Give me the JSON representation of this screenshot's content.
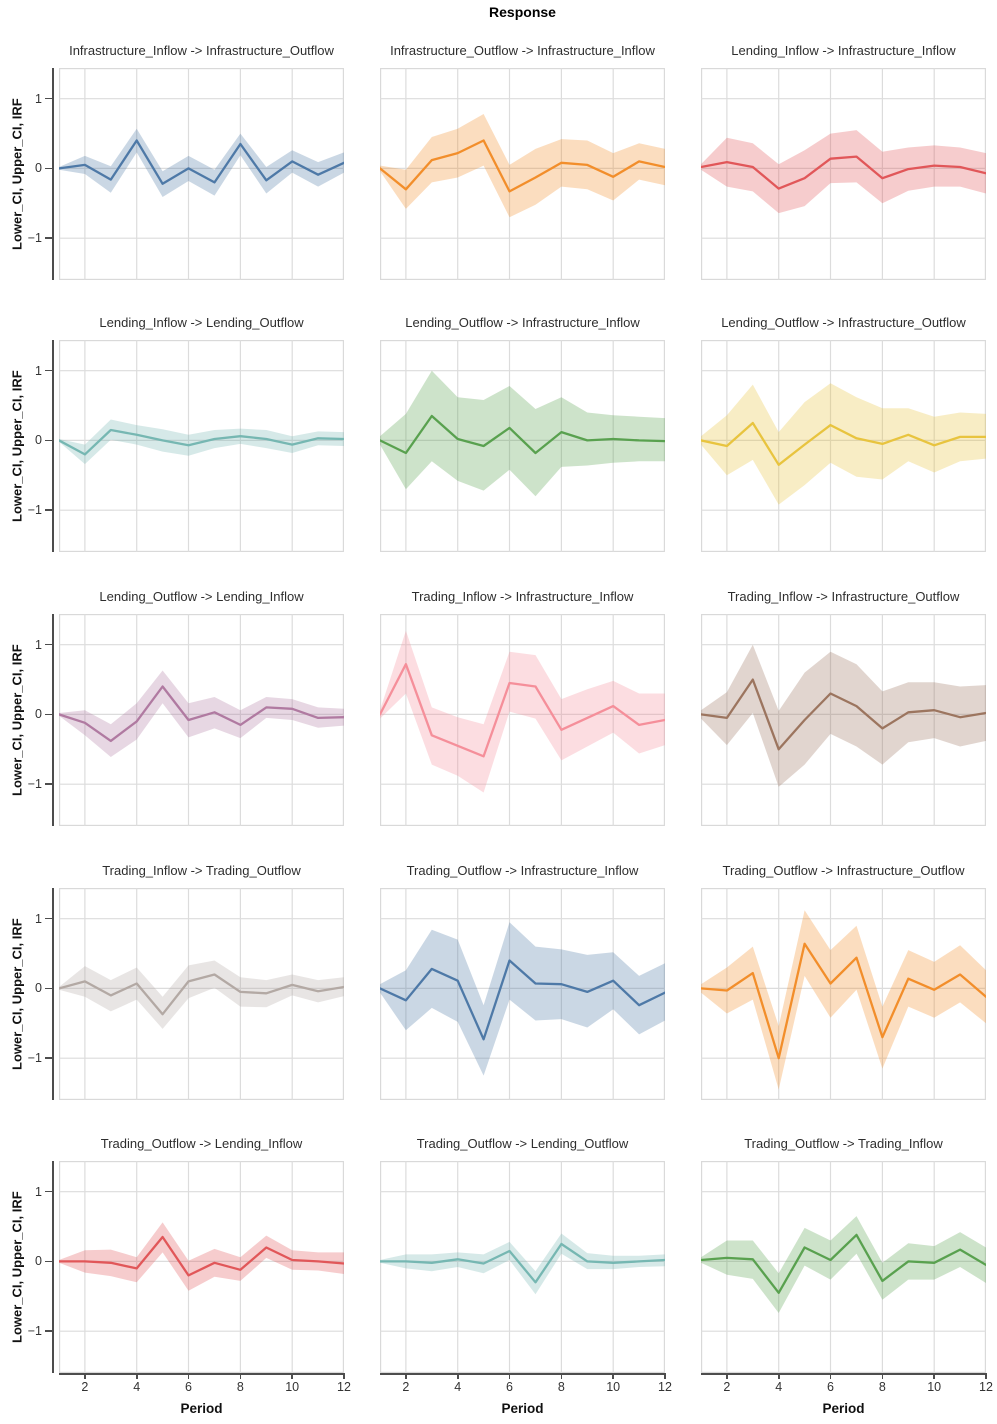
{
  "figure": {
    "suptitle": "Response",
    "xlabel": "Period",
    "ylabel": "Lower_CI, Upper_CI, IRF",
    "background_color": "#ffffff",
    "panel_border_color": "#d9d9d9",
    "grid_color": "#dcdcdc",
    "axis_line_color": "#4d4d4d",
    "yticks": [
      {
        "label": "1",
        "value": 1
      },
      {
        "label": "0",
        "value": 0
      },
      {
        "label": "−1",
        "value": -1
      }
    ],
    "xticks": [
      {
        "label": "2",
        "value": 2
      },
      {
        "label": "4",
        "value": 4
      },
      {
        "label": "6",
        "value": 6
      },
      {
        "label": "8",
        "value": 8
      },
      {
        "label": "10",
        "value": 10
      },
      {
        "label": "12",
        "value": 12
      }
    ]
  },
  "chart_data": [
    {
      "type": "line",
      "title": "Infrastructure_Inflow -> Infrastructure_Outflow",
      "color": "#4e79a7",
      "x": [
        1,
        2,
        3,
        4,
        5,
        6,
        7,
        8,
        9,
        10,
        11,
        12
      ],
      "irf": [
        0.0,
        0.05,
        -0.16,
        0.4,
        -0.22,
        0.0,
        -0.2,
        0.35,
        -0.17,
        0.1,
        -0.09,
        0.08
      ],
      "upper_ci": [
        0.02,
        0.18,
        0.03,
        0.57,
        -0.04,
        0.18,
        -0.02,
        0.5,
        0.02,
        0.26,
        0.09,
        0.23
      ],
      "lower_ci": [
        -0.02,
        -0.08,
        -0.35,
        0.23,
        -0.41,
        -0.18,
        -0.39,
        0.19,
        -0.36,
        -0.06,
        -0.26,
        -0.06
      ],
      "xlim": [
        1,
        12
      ],
      "ylim": [
        -1.6,
        1.44
      ]
    },
    {
      "type": "line",
      "title": "Infrastructure_Outflow -> Infrastructure_Inflow",
      "color": "#f28e2b",
      "x": [
        1,
        2,
        3,
        4,
        5,
        6,
        7,
        8,
        9,
        10,
        11,
        12
      ],
      "irf": [
        0.0,
        -0.3,
        0.12,
        0.22,
        0.4,
        -0.33,
        -0.13,
        0.08,
        0.05,
        -0.12,
        0.1,
        0.02
      ],
      "upper_ci": [
        0.04,
        -0.02,
        0.45,
        0.57,
        0.78,
        0.05,
        0.28,
        0.42,
        0.4,
        0.22,
        0.36,
        0.28
      ],
      "lower_ci": [
        -0.04,
        -0.58,
        -0.2,
        -0.13,
        0.04,
        -0.7,
        -0.52,
        -0.26,
        -0.3,
        -0.46,
        -0.16,
        -0.24
      ],
      "xlim": [
        1,
        12
      ],
      "ylim": [
        -1.6,
        1.44
      ]
    },
    {
      "type": "line",
      "title": "Lending_Inflow -> Infrastructure_Inflow",
      "color": "#e15759",
      "x": [
        1,
        2,
        3,
        4,
        5,
        6,
        7,
        8,
        9,
        10,
        11,
        12
      ],
      "irf": [
        0.02,
        0.09,
        0.02,
        -0.29,
        -0.14,
        0.14,
        0.17,
        -0.14,
        -0.01,
        0.04,
        0.02,
        -0.07
      ],
      "upper_ci": [
        0.06,
        0.44,
        0.36,
        0.06,
        0.26,
        0.5,
        0.55,
        0.24,
        0.3,
        0.33,
        0.3,
        0.22
      ],
      "lower_ci": [
        -0.02,
        -0.26,
        -0.33,
        -0.64,
        -0.54,
        -0.21,
        -0.2,
        -0.5,
        -0.32,
        -0.26,
        -0.26,
        -0.36
      ],
      "xlim": [
        1,
        12
      ],
      "ylim": [
        -1.6,
        1.44
      ]
    },
    {
      "type": "line",
      "title": "Lending_Inflow -> Lending_Outflow",
      "color": "#76b7b2",
      "x": [
        1,
        2,
        3,
        4,
        5,
        6,
        7,
        8,
        9,
        10,
        11,
        12
      ],
      "irf": [
        0.0,
        -0.2,
        0.15,
        0.08,
        0.0,
        -0.07,
        0.02,
        0.06,
        0.02,
        -0.06,
        0.03,
        0.02
      ],
      "upper_ci": [
        0.02,
        -0.06,
        0.3,
        0.22,
        0.16,
        0.08,
        0.15,
        0.17,
        0.15,
        0.06,
        0.13,
        0.12
      ],
      "lower_ci": [
        -0.02,
        -0.34,
        0.01,
        -0.06,
        -0.16,
        -0.22,
        -0.11,
        -0.05,
        -0.11,
        -0.18,
        -0.07,
        -0.08
      ],
      "xlim": [
        1,
        12
      ],
      "ylim": [
        -1.6,
        1.44
      ]
    },
    {
      "type": "line",
      "title": "Lending_Outflow -> Infrastructure_Inflow",
      "color": "#59a14f",
      "x": [
        1,
        2,
        3,
        4,
        5,
        6,
        7,
        8,
        9,
        10,
        11,
        12
      ],
      "irf": [
        0.0,
        -0.18,
        0.35,
        0.02,
        -0.08,
        0.18,
        -0.18,
        0.12,
        0.0,
        0.02,
        0.0,
        -0.01
      ],
      "upper_ci": [
        0.06,
        0.38,
        1.0,
        0.62,
        0.58,
        0.78,
        0.45,
        0.62,
        0.4,
        0.36,
        0.34,
        0.32
      ],
      "lower_ci": [
        -0.06,
        -0.7,
        -0.3,
        -0.58,
        -0.72,
        -0.42,
        -0.8,
        -0.38,
        -0.36,
        -0.32,
        -0.3,
        -0.3
      ],
      "xlim": [
        1,
        12
      ],
      "ylim": [
        -1.6,
        1.44
      ]
    },
    {
      "type": "line",
      "title": "Lending_Outflow -> Infrastructure_Outflow",
      "color": "#e8c43f",
      "x": [
        1,
        2,
        3,
        4,
        5,
        6,
        7,
        8,
        9,
        10,
        11,
        12
      ],
      "irf": [
        0.0,
        -0.08,
        0.25,
        -0.35,
        -0.06,
        0.22,
        0.03,
        -0.05,
        0.08,
        -0.07,
        0.05,
        0.05
      ],
      "upper_ci": [
        0.06,
        0.36,
        0.8,
        0.12,
        0.55,
        0.82,
        0.62,
        0.46,
        0.46,
        0.34,
        0.4,
        0.38
      ],
      "lower_ci": [
        -0.06,
        -0.5,
        -0.28,
        -0.92,
        -0.64,
        -0.32,
        -0.52,
        -0.56,
        -0.3,
        -0.46,
        -0.3,
        -0.26
      ],
      "xlim": [
        1,
        12
      ],
      "ylim": [
        -1.6,
        1.44
      ]
    },
    {
      "type": "line",
      "title": "Lending_Outflow -> Lending_Inflow",
      "color": "#b07aa1",
      "x": [
        1,
        2,
        3,
        4,
        5,
        6,
        7,
        8,
        9,
        10,
        11,
        12
      ],
      "irf": [
        0.0,
        -0.12,
        -0.38,
        -0.1,
        0.4,
        -0.08,
        0.03,
        -0.15,
        0.1,
        0.08,
        -0.05,
        -0.04
      ],
      "upper_ci": [
        0.02,
        0.06,
        -0.14,
        0.16,
        0.63,
        0.16,
        0.25,
        0.06,
        0.25,
        0.22,
        0.1,
        0.08
      ],
      "lower_ci": [
        -0.02,
        -0.3,
        -0.61,
        -0.36,
        0.16,
        -0.33,
        -0.2,
        -0.34,
        -0.05,
        -0.08,
        -0.19,
        -0.16
      ],
      "xlim": [
        1,
        12
      ],
      "ylim": [
        -1.6,
        1.44
      ]
    },
    {
      "type": "line",
      "title": "Trading_Inflow -> Infrastructure_Inflow",
      "color": "#f58f9a",
      "x": [
        1,
        2,
        3,
        4,
        5,
        6,
        7,
        8,
        9,
        10,
        11,
        12
      ],
      "irf": [
        0.0,
        0.72,
        -0.3,
        -0.45,
        -0.6,
        0.45,
        0.4,
        -0.22,
        -0.05,
        0.12,
        -0.15,
        -0.08
      ],
      "upper_ci": [
        0.06,
        1.2,
        0.1,
        -0.04,
        -0.14,
        0.9,
        0.85,
        0.22,
        0.36,
        0.48,
        0.3,
        0.3
      ],
      "lower_ci": [
        -0.06,
        0.3,
        -0.72,
        -0.88,
        -1.12,
        0.04,
        -0.06,
        -0.66,
        -0.46,
        -0.26,
        -0.56,
        -0.44
      ],
      "xlim": [
        1,
        12
      ],
      "ylim": [
        -1.6,
        1.44
      ]
    },
    {
      "type": "line",
      "title": "Trading_Inflow -> Infrastructure_Outflow",
      "color": "#9c755f",
      "x": [
        1,
        2,
        3,
        4,
        5,
        6,
        7,
        8,
        9,
        10,
        11,
        12
      ],
      "irf": [
        0.0,
        -0.05,
        0.5,
        -0.5,
        -0.08,
        0.3,
        0.12,
        -0.2,
        0.03,
        0.06,
        -0.04,
        0.02
      ],
      "upper_ci": [
        0.06,
        0.32,
        1.0,
        0.05,
        0.6,
        0.9,
        0.72,
        0.33,
        0.46,
        0.46,
        0.4,
        0.42
      ],
      "lower_ci": [
        -0.06,
        -0.44,
        0.02,
        -1.04,
        -0.72,
        -0.28,
        -0.46,
        -0.72,
        -0.4,
        -0.34,
        -0.46,
        -0.38
      ],
      "xlim": [
        1,
        12
      ],
      "ylim": [
        -1.6,
        1.44
      ]
    },
    {
      "type": "line",
      "title": "Trading_Inflow -> Trading_Outflow",
      "color": "#b3a9a4",
      "x": [
        1,
        2,
        3,
        4,
        5,
        6,
        7,
        8,
        9,
        10,
        11,
        12
      ],
      "irf": [
        0.0,
        0.1,
        -0.1,
        0.07,
        -0.37,
        0.1,
        0.2,
        -0.05,
        -0.07,
        0.05,
        -0.04,
        0.02
      ],
      "upper_ci": [
        0.02,
        0.32,
        0.12,
        0.3,
        -0.12,
        0.33,
        0.4,
        0.16,
        0.12,
        0.2,
        0.12,
        0.16
      ],
      "lower_ci": [
        -0.02,
        -0.12,
        -0.33,
        -0.16,
        -0.58,
        -0.14,
        0.01,
        -0.26,
        -0.27,
        -0.1,
        -0.2,
        -0.11
      ],
      "xlim": [
        1,
        12
      ],
      "ylim": [
        -1.6,
        1.44
      ]
    },
    {
      "type": "line",
      "title": "Trading_Outflow -> Infrastructure_Inflow",
      "color": "#4e79a7",
      "x": [
        1,
        2,
        3,
        4,
        5,
        6,
        7,
        8,
        9,
        10,
        11,
        12
      ],
      "irf": [
        0.0,
        -0.17,
        0.28,
        0.11,
        -0.73,
        0.4,
        0.07,
        0.06,
        -0.05,
        0.11,
        -0.24,
        -0.06
      ],
      "upper_ci": [
        0.06,
        0.26,
        0.84,
        0.7,
        -0.24,
        0.95,
        0.6,
        0.56,
        0.48,
        0.52,
        0.18,
        0.36
      ],
      "lower_ci": [
        -0.06,
        -0.6,
        -0.28,
        -0.48,
        -1.25,
        -0.16,
        -0.46,
        -0.44,
        -0.56,
        -0.3,
        -0.66,
        -0.46
      ],
      "xlim": [
        1,
        12
      ],
      "ylim": [
        -1.6,
        1.44
      ]
    },
    {
      "type": "line",
      "title": "Trading_Outflow -> Infrastructure_Outflow",
      "color": "#f28e2b",
      "x": [
        1,
        2,
        3,
        4,
        5,
        6,
        7,
        8,
        9,
        10,
        11,
        12
      ],
      "irf": [
        0.0,
        -0.03,
        0.22,
        -1.0,
        0.64,
        0.07,
        0.44,
        -0.7,
        0.14,
        -0.02,
        0.2,
        -0.12
      ],
      "upper_ci": [
        0.06,
        0.3,
        0.6,
        -0.54,
        1.12,
        0.55,
        0.9,
        -0.26,
        0.55,
        0.38,
        0.62,
        0.26
      ],
      "lower_ci": [
        -0.06,
        -0.36,
        -0.16,
        -1.45,
        0.18,
        -0.42,
        -0.02,
        -1.15,
        -0.26,
        -0.42,
        -0.2,
        -0.5
      ],
      "xlim": [
        1,
        12
      ],
      "ylim": [
        -1.6,
        1.44
      ]
    },
    {
      "type": "line",
      "title": "Trading_Outflow -> Lending_Inflow",
      "color": "#e15759",
      "x": [
        1,
        2,
        3,
        4,
        5,
        6,
        7,
        8,
        9,
        10,
        11,
        12
      ],
      "irf": [
        0.0,
        0.0,
        -0.02,
        -0.1,
        0.35,
        -0.2,
        -0.02,
        -0.12,
        0.2,
        0.02,
        0.0,
        -0.03
      ],
      "upper_ci": [
        0.02,
        0.16,
        0.17,
        0.06,
        0.56,
        0.01,
        0.18,
        0.06,
        0.37,
        0.16,
        0.13,
        0.13
      ],
      "lower_ci": [
        -0.02,
        -0.16,
        -0.21,
        -0.3,
        0.13,
        -0.42,
        -0.22,
        -0.28,
        0.05,
        -0.12,
        -0.13,
        -0.18
      ],
      "xlim": [
        1,
        12
      ],
      "ylim": [
        -1.6,
        1.44
      ]
    },
    {
      "type": "line",
      "title": "Trading_Outflow -> Lending_Outflow",
      "color": "#76b7b2",
      "x": [
        1,
        2,
        3,
        4,
        5,
        6,
        7,
        8,
        9,
        10,
        11,
        12
      ],
      "irf": [
        0.0,
        0.0,
        -0.02,
        0.03,
        -0.03,
        0.15,
        -0.3,
        0.25,
        0.0,
        -0.02,
        0.0,
        0.02
      ],
      "upper_ci": [
        0.02,
        0.1,
        0.1,
        0.13,
        0.1,
        0.28,
        -0.14,
        0.4,
        0.12,
        0.08,
        0.08,
        0.1
      ],
      "lower_ci": [
        -0.02,
        -0.1,
        -0.14,
        -0.08,
        -0.17,
        0.02,
        -0.47,
        0.11,
        -0.11,
        -0.11,
        -0.08,
        -0.07
      ],
      "xlim": [
        1,
        12
      ],
      "ylim": [
        -1.6,
        1.44
      ]
    },
    {
      "type": "line",
      "title": "Trading_Outflow -> Trading_Inflow",
      "color": "#59a14f",
      "x": [
        1,
        2,
        3,
        4,
        5,
        6,
        7,
        8,
        9,
        10,
        11,
        12
      ],
      "irf": [
        0.02,
        0.05,
        0.03,
        -0.45,
        0.2,
        0.02,
        0.38,
        -0.28,
        0.0,
        -0.02,
        0.17,
        -0.05
      ],
      "upper_ci": [
        0.06,
        0.3,
        0.3,
        -0.17,
        0.48,
        0.3,
        0.65,
        -0.02,
        0.26,
        0.22,
        0.42,
        0.2
      ],
      "lower_ci": [
        -0.02,
        -0.19,
        -0.25,
        -0.74,
        -0.06,
        -0.26,
        0.11,
        -0.55,
        -0.26,
        -0.26,
        -0.08,
        -0.31
      ],
      "xlim": [
        1,
        12
      ],
      "ylim": [
        -1.6,
        1.44
      ]
    }
  ]
}
